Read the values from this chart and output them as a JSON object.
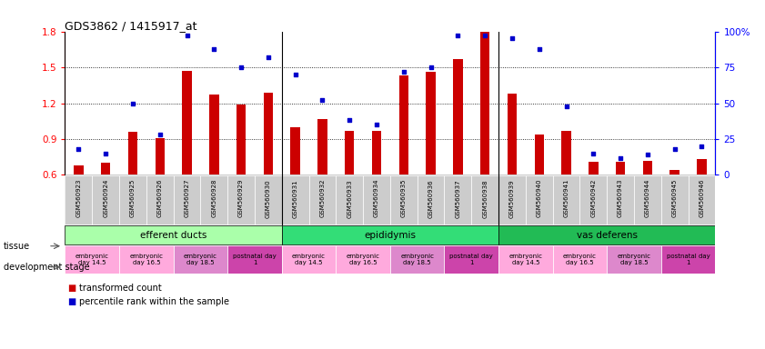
{
  "title": "GDS3862 / 1415917_at",
  "samples": [
    "GSM560923",
    "GSM560924",
    "GSM560925",
    "GSM560926",
    "GSM560927",
    "GSM560928",
    "GSM560929",
    "GSM560930",
    "GSM560931",
    "GSM560932",
    "GSM560933",
    "GSM560934",
    "GSM560935",
    "GSM560936",
    "GSM560937",
    "GSM560938",
    "GSM560939",
    "GSM560940",
    "GSM560941",
    "GSM560942",
    "GSM560943",
    "GSM560944",
    "GSM560945",
    "GSM560946"
  ],
  "bar_values": [
    0.68,
    0.7,
    0.96,
    0.91,
    1.47,
    1.27,
    1.19,
    1.29,
    1.0,
    1.07,
    0.97,
    0.97,
    1.43,
    1.46,
    1.57,
    1.81,
    1.28,
    0.94,
    0.97,
    0.71,
    0.71,
    0.72,
    0.64,
    0.73
  ],
  "scatter_values": [
    18,
    15,
    50,
    28,
    97,
    88,
    75,
    82,
    70,
    52,
    38,
    35,
    72,
    75,
    97,
    97,
    95,
    88,
    48,
    15,
    12,
    14,
    18,
    20
  ],
  "ylim_left": [
    0.6,
    1.8
  ],
  "ylim_right": [
    0,
    100
  ],
  "yticks_left": [
    0.6,
    0.9,
    1.2,
    1.5,
    1.8
  ],
  "yticks_right": [
    0,
    25,
    50,
    75,
    100
  ],
  "bar_color": "#cc0000",
  "scatter_color": "#0000cc",
  "tissues": [
    {
      "label": "efferent ducts",
      "start": 0,
      "end": 8,
      "color": "#aaffaa"
    },
    {
      "label": "epididymis",
      "start": 8,
      "end": 16,
      "color": "#33dd77"
    },
    {
      "label": "vas deferens",
      "start": 16,
      "end": 24,
      "color": "#22bb55"
    }
  ],
  "dev_stages": [
    {
      "label": "embryonic\nday 14.5",
      "start": 0,
      "end": 2,
      "color": "#ffaadd"
    },
    {
      "label": "embryonic\nday 16.5",
      "start": 2,
      "end": 4,
      "color": "#ffaadd"
    },
    {
      "label": "embryonic\nday 18.5",
      "start": 4,
      "end": 6,
      "color": "#dd88cc"
    },
    {
      "label": "postnatal day\n1",
      "start": 6,
      "end": 8,
      "color": "#cc44aa"
    },
    {
      "label": "embryonic\nday 14.5",
      "start": 8,
      "end": 10,
      "color": "#ffaadd"
    },
    {
      "label": "embryonic\nday 16.5",
      "start": 10,
      "end": 12,
      "color": "#ffaadd"
    },
    {
      "label": "embryonic\nday 18.5",
      "start": 12,
      "end": 14,
      "color": "#dd88cc"
    },
    {
      "label": "postnatal day\n1",
      "start": 14,
      "end": 16,
      "color": "#cc44aa"
    },
    {
      "label": "embryonic\nday 14.5",
      "start": 16,
      "end": 18,
      "color": "#ffaadd"
    },
    {
      "label": "embryonic\nday 16.5",
      "start": 18,
      "end": 20,
      "color": "#ffaadd"
    },
    {
      "label": "embryonic\nday 18.5",
      "start": 20,
      "end": 22,
      "color": "#dd88cc"
    },
    {
      "label": "postnatal day\n1",
      "start": 22,
      "end": 24,
      "color": "#cc44aa"
    }
  ],
  "tick_bg_color": "#cccccc",
  "legend_bar_label": "transformed count",
  "legend_scatter_label": "percentile rank within the sample",
  "tissue_label": "tissue",
  "dev_stage_label": "development stage"
}
